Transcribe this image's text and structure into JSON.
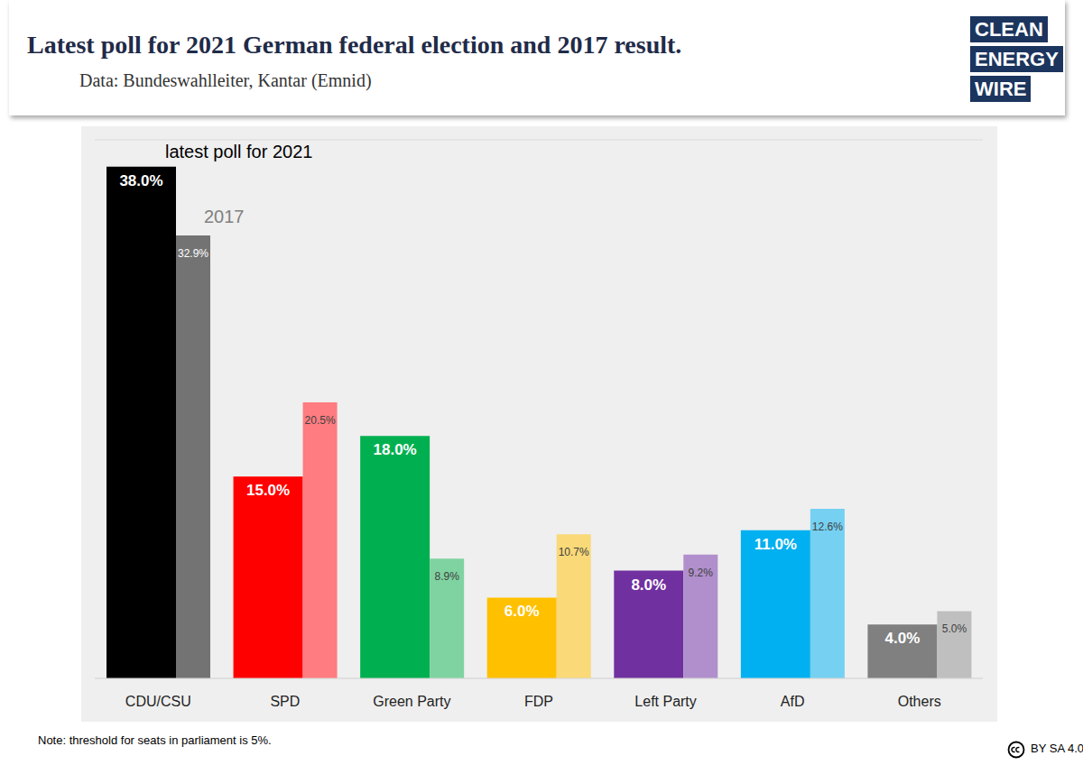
{
  "chart_data": {
    "type": "bar",
    "title": "Latest poll for 2021 German federal election and 2017 result.",
    "subtitle": "Data: Bundeswahlleiter, Kantar (Emnid)",
    "categories": [
      "CDU/CSU",
      "SPD",
      "Green Party",
      "FDP",
      "Left Party",
      "AfD",
      "Others"
    ],
    "series": [
      {
        "name": "latest poll for 2021",
        "colors": [
          "#000000",
          "#ff0000",
          "#00b050",
          "#ffc000",
          "#7030a0",
          "#00b0f0",
          "#808080"
        ],
        "values": [
          38.0,
          15.0,
          18.0,
          6.0,
          8.0,
          11.0,
          4.0
        ],
        "value_labels": [
          "38.0%",
          "15.0%",
          "18.0%",
          "6.0%",
          "8.0%",
          "11.0%",
          "4.0%"
        ]
      },
      {
        "name": "2017",
        "colors": [
          "#737373",
          "#ff7c80",
          "#7fd3a0",
          "#f9d978",
          "#b08fcc",
          "#75d0f2",
          "#bfbfbf"
        ],
        "values": [
          32.9,
          20.5,
          8.9,
          10.7,
          9.2,
          12.6,
          5.0
        ],
        "value_labels": [
          "32.9%",
          "20.5%",
          "8.9%",
          "10.7%",
          "9.2%",
          "12.6%",
          "5.0%"
        ]
      }
    ],
    "ylim": [
      0,
      40
    ],
    "yticks": [
      0,
      5,
      10,
      15,
      20,
      25,
      30,
      35,
      40
    ],
    "grid": true,
    "tick_labels": "x",
    "data_labels": true,
    "note": "Note: threshold for seats in parliament is 5%.",
    "logo": [
      "CLEAN",
      "ENERGY",
      "WIRE"
    ],
    "license": "BY SA 4.0"
  }
}
